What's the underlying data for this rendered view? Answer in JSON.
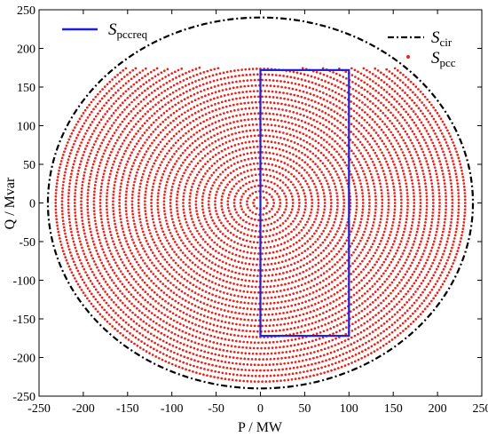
{
  "chart_data": {
    "type": "scatter",
    "xlabel": "P / MW",
    "ylabel": "Q / Mvar",
    "xlim": [
      -250,
      250
    ],
    "ylim": [
      -250,
      250
    ],
    "x_ticks": [
      -250,
      -200,
      -150,
      -100,
      -50,
      0,
      50,
      100,
      150,
      200,
      250
    ],
    "y_ticks": [
      -250,
      -200,
      -150,
      -100,
      -50,
      0,
      50,
      100,
      150,
      200,
      250
    ],
    "grid": false,
    "legend": {
      "left": {
        "placement": "top-left",
        "entries": [
          {
            "base": "S",
            "sub": "pccreq",
            "marker": "line",
            "color": "#1f1fd6"
          }
        ]
      },
      "right": {
        "placement": "top-right",
        "entries": [
          {
            "base": "S",
            "sub": "cir",
            "marker": "dashdot",
            "color": "#000000"
          },
          {
            "base": "S",
            "sub": "pcc",
            "marker": "dot",
            "color": "#e8231b"
          }
        ]
      }
    },
    "series": [
      {
        "base": "S",
        "sub": "cir",
        "kind": "circle",
        "center": [
          0,
          0
        ],
        "radius": 240,
        "color": "#000000",
        "style": "dashdot"
      },
      {
        "base": "S",
        "sub": "pcc",
        "kind": "dotted-region",
        "center": [
          0,
          0
        ],
        "radius_max": 233,
        "q_max": 175,
        "point_color": "#e8231b"
      },
      {
        "base": "S",
        "sub": "pccreq",
        "kind": "rectangle",
        "x": [
          0,
          100
        ],
        "y": [
          -172,
          172
        ],
        "color": "#1f1fd6"
      }
    ]
  }
}
